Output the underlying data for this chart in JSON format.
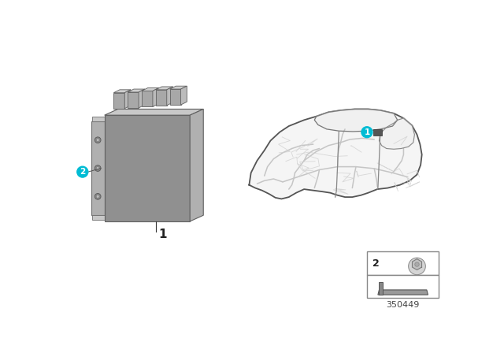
{
  "bg_color": "#ffffff",
  "diagram_number": "350449",
  "callout_color": "#00bcd4",
  "ecu_face_color": "#909090",
  "ecu_top_color": "#c8c8c8",
  "ecu_right_color": "#b0b0b0",
  "ecu_edge_color": "#606060",
  "connector_face": "#a8a8a8",
  "connector_top": "#d0d0d0",
  "bracket_color": "#b0b0b0",
  "bracket_edge": "#707070",
  "car_fill": "#f5f5f5",
  "car_edge": "#555555",
  "wire_color": "#c0c0c0",
  "wire_dark": "#aaaaaa",
  "inset_edge": "#888888",
  "label_color": "#222222",
  "part_label_color": "#444444"
}
